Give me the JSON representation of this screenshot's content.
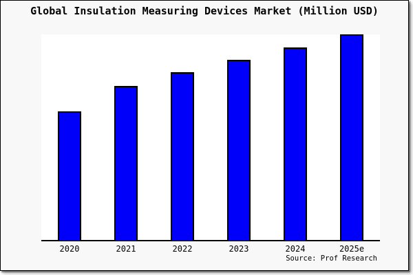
{
  "chart_data": {
    "type": "bar",
    "title": "Global Insulation Measuring Devices Market (Million USD)",
    "categories": [
      "2020",
      "2021",
      "2022",
      "2023",
      "2024",
      "2025e"
    ],
    "values": [
      188,
      225,
      245,
      263,
      281,
      300
    ],
    "ylim": [
      0,
      300
    ],
    "value_note": "no y-axis ticks, labels or gridlines shown; values are relative bar heights estimated from pixels",
    "xlabel": "",
    "ylabel": "",
    "gridlines": false,
    "legend": "none",
    "y_axis_visible": false,
    "source": "Source: Prof Research",
    "colors": {
      "bar_fill": "#0000fa",
      "bar_border": "#000000",
      "plot_bg": "#ffffff",
      "canvas_bg": "#f8f8f8",
      "frame_border": "#000000",
      "text": "#000000"
    }
  }
}
